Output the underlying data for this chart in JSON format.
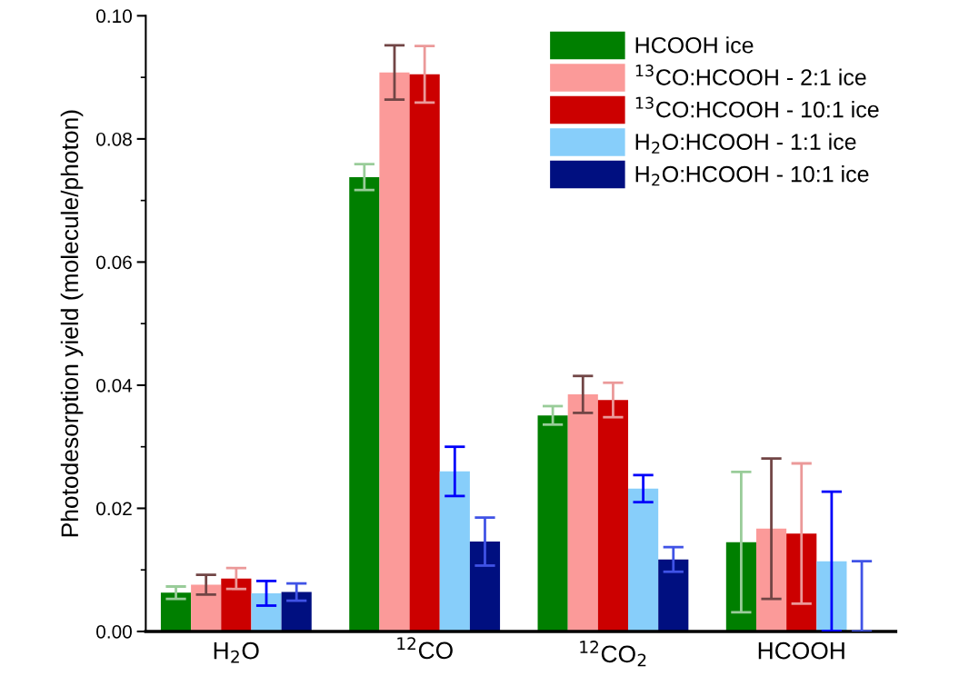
{
  "chart_data": {
    "type": "bar",
    "ylabel": "Photodesorption yield (molecule/photon)",
    "categories": [
      "H$_{2}$O",
      "$^{12}$CO",
      "$^{12}$CO$_{2}$",
      "HCOOH"
    ],
    "series": [
      {
        "name": "HCOOH ice",
        "color": "#007f00",
        "values": [
          0.0063,
          0.0738,
          0.0351,
          0.0145
        ],
        "errors": [
          0.001,
          0.0021,
          0.0015,
          0.0114
        ]
      },
      {
        "name": "$^{13}$CO:HCOOH - 2:1 ice",
        "color": "#fb9a99",
        "values": [
          0.0076,
          0.0908,
          0.0385,
          0.0167
        ],
        "errors": [
          0.0016,
          0.0044,
          0.003,
          0.0114
        ]
      },
      {
        "name": "$^{13}$CO:HCOOH - 10:1 ice",
        "color": "#cc0000",
        "values": [
          0.0086,
          0.0905,
          0.0376,
          0.0159
        ],
        "errors": [
          0.0017,
          0.0046,
          0.0028,
          0.0114
        ]
      },
      {
        "name": "H$_{2}$O:HCOOH - 1:1 ice",
        "color": "#87cefa",
        "values": [
          0.0062,
          0.026,
          0.0232,
          0.0114
        ],
        "errors": [
          0.002,
          0.004,
          0.0022,
          0.0113
        ]
      },
      {
        "name": "H$_{2}$O:HCOOH - 10:1 ice",
        "color": "#000f80",
        "values": [
          0.0064,
          0.0146,
          0.0117,
          0.0001
        ],
        "errors": [
          0.0014,
          0.0039,
          0.002,
          [
            0.0,
            0.0114
          ]
        ]
      }
    ],
    "ylim": [
      0,
      0.1
    ],
    "yticks": [
      {
        "value": 0,
        "label": "0.00"
      },
      {
        "value": 0.02,
        "label": "0.02"
      },
      {
        "value": 0.04,
        "label": "0.04"
      },
      {
        "value": 0.06,
        "label": "0.06"
      },
      {
        "value": 0.08,
        "label": "0.08"
      },
      {
        "value": 0.1,
        "label": "0.10"
      }
    ],
    "grid": false,
    "legend": "top right"
  }
}
